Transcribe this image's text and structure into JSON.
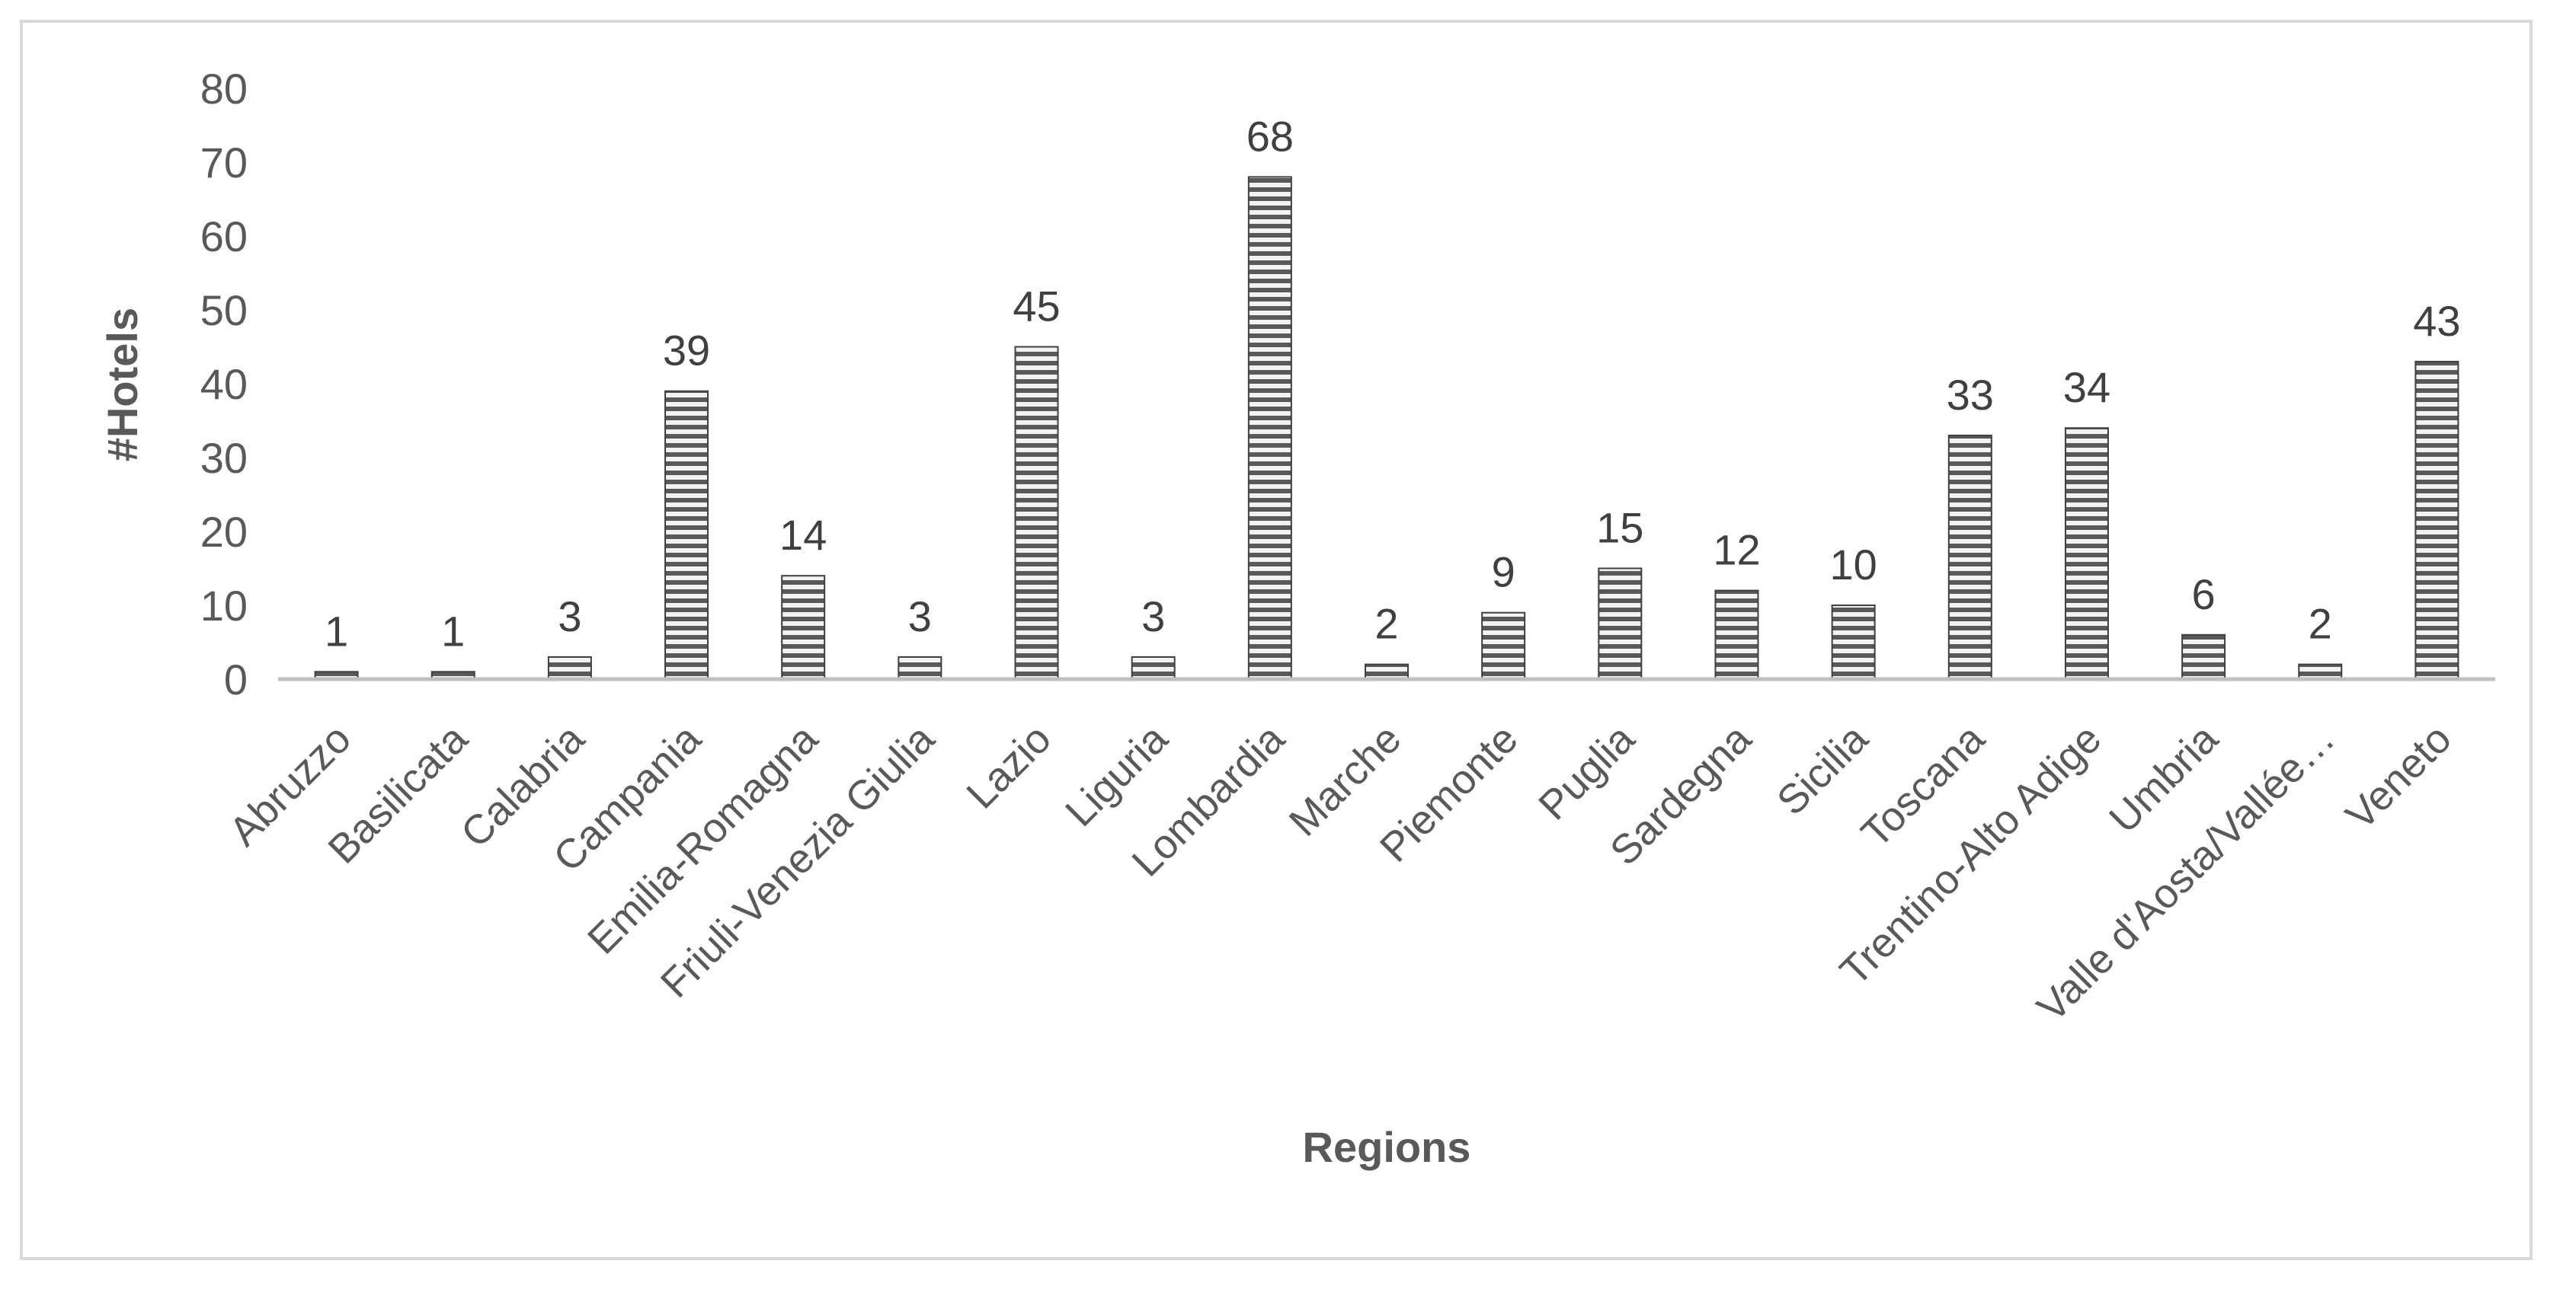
{
  "chart_data": {
    "type": "bar",
    "title": "",
    "xlabel": "Regions",
    "ylabel": "#Hotels",
    "ylim": [
      0,
      80
    ],
    "yticks": [
      0,
      10,
      20,
      30,
      40,
      50,
      60,
      70,
      80
    ],
    "grid": false,
    "legend": "none",
    "categories": [
      "Abruzzo",
      "Basilicata",
      "Calabria",
      "Campania",
      "Emilia-Romagna",
      "Friuli-Venezia Giulia",
      "Lazio",
      "Liguria",
      "Lombardia",
      "Marche",
      "Piemonte",
      "Puglia",
      "Sardegna",
      "Sicilia",
      "Toscana",
      "Trentino-Alto Adige",
      "Umbria",
      "Valle d'Aosta/Vallée…",
      "Veneto"
    ],
    "values": [
      1,
      1,
      3,
      39,
      14,
      3,
      45,
      3,
      68,
      2,
      9,
      15,
      12,
      10,
      33,
      34,
      6,
      2,
      43
    ],
    "bar_style": {
      "fill": "#f2f2f2",
      "stripe": "#595959",
      "outline": "#404040"
    },
    "axis_color": "#bfbfbf"
  }
}
